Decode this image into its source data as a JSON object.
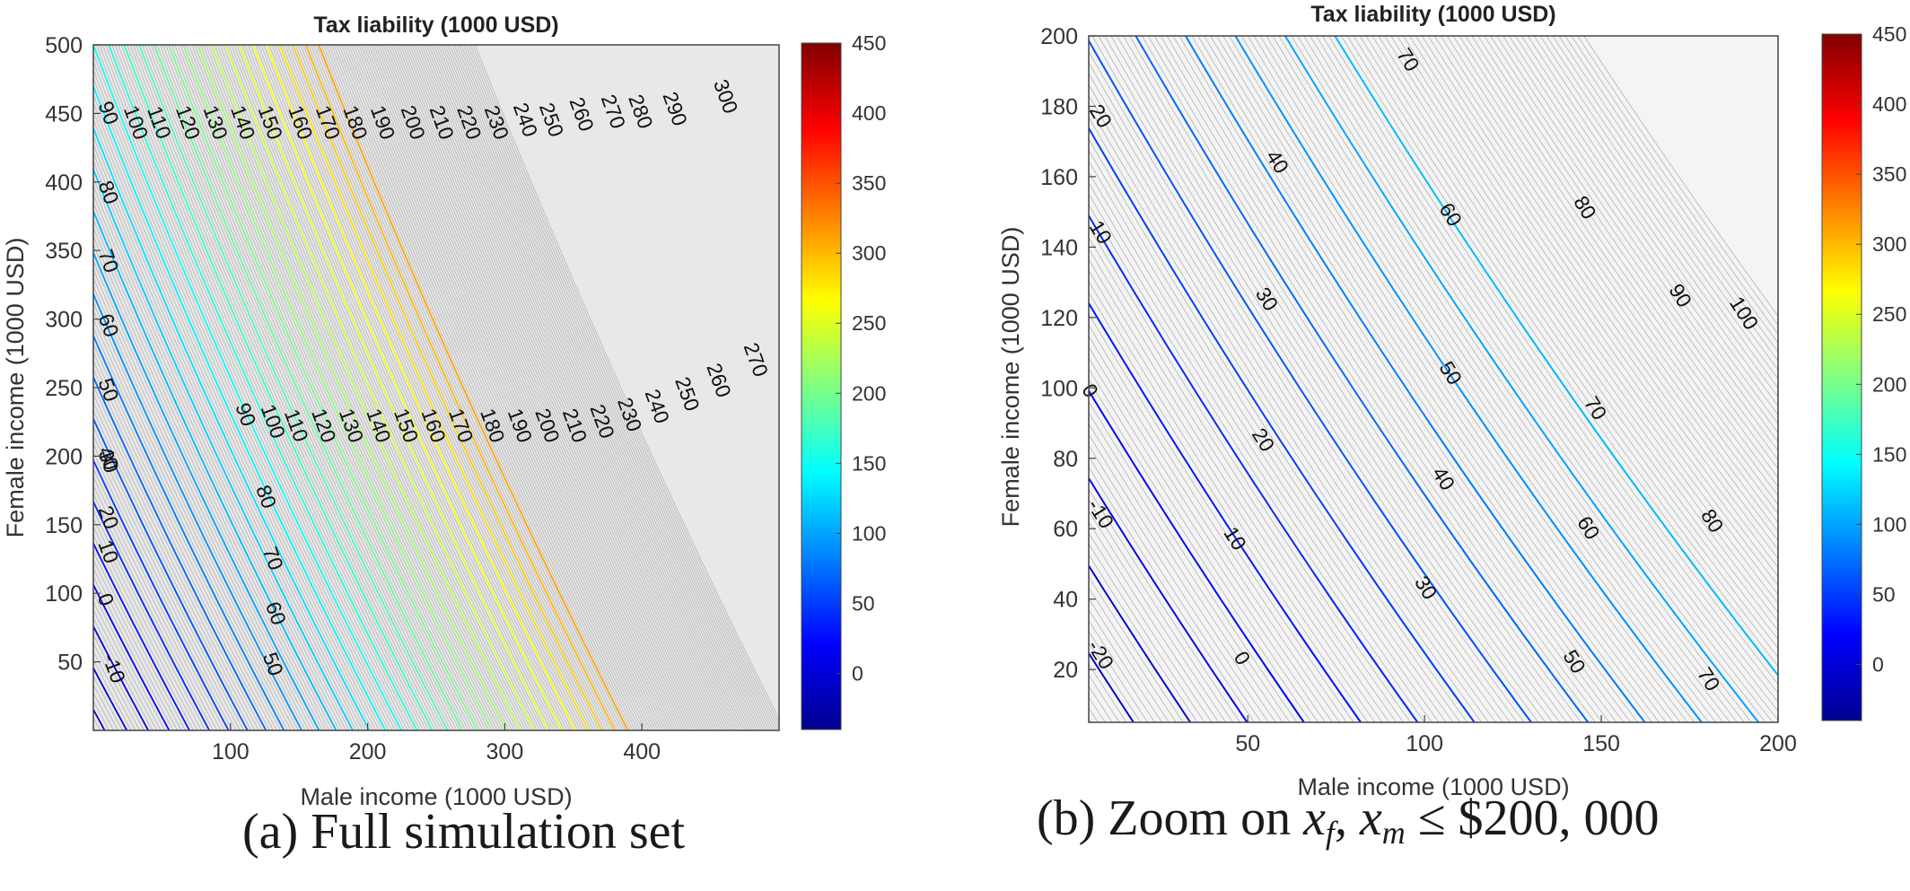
{
  "colormap_stops": [
    "#00008f",
    "#0000ff",
    "#0080ff",
    "#00ffff",
    "#80ff80",
    "#ffff00",
    "#ff8000",
    "#ff0000",
    "#800000"
  ],
  "minor_line_color": "#b4b4b4",
  "plot_background": "#e6e6e6",
  "chart_data": [
    {
      "type": "contour",
      "title": "Tax liability (1000 USD)",
      "xlabel": "Male income (1000 USD)",
      "ylabel": "Female income (1000 USD)",
      "xlim": [
        0,
        500
      ],
      "ylim": [
        0,
        500
      ],
      "xticks": [
        100,
        200,
        300,
        400
      ],
      "yticks": [
        50,
        100,
        150,
        200,
        250,
        300,
        350,
        400,
        450,
        500
      ],
      "colorbar": {
        "range": [
          -40,
          450
        ],
        "ticks": [
          0,
          50,
          100,
          150,
          200,
          250,
          300,
          350,
          400,
          450
        ]
      },
      "contour_labels": [
        {
          "x": 10,
          "y": 450,
          "value": "90"
        },
        {
          "x": 30,
          "y": 443,
          "value": "100"
        },
        {
          "x": 47,
          "y": 443,
          "value": "110"
        },
        {
          "x": 68,
          "y": 443,
          "value": "120"
        },
        {
          "x": 88,
          "y": 443,
          "value": "130"
        },
        {
          "x": 108,
          "y": 443,
          "value": "140"
        },
        {
          "x": 128,
          "y": 443,
          "value": "150"
        },
        {
          "x": 150,
          "y": 443,
          "value": "160"
        },
        {
          "x": 170,
          "y": 443,
          "value": "170"
        },
        {
          "x": 190,
          "y": 443,
          "value": "180"
        },
        {
          "x": 210,
          "y": 443,
          "value": "190"
        },
        {
          "x": 232,
          "y": 443,
          "value": "200"
        },
        {
          "x": 253,
          "y": 443,
          "value": "210"
        },
        {
          "x": 273,
          "y": 443,
          "value": "220"
        },
        {
          "x": 293,
          "y": 443,
          "value": "230"
        },
        {
          "x": 314,
          "y": 445,
          "value": "240"
        },
        {
          "x": 333,
          "y": 445,
          "value": "250"
        },
        {
          "x": 355,
          "y": 449,
          "value": "260"
        },
        {
          "x": 378,
          "y": 451,
          "value": "270"
        },
        {
          "x": 398,
          "y": 451,
          "value": "280"
        },
        {
          "x": 423,
          "y": 453,
          "value": "290"
        },
        {
          "x": 460,
          "y": 462,
          "value": "300"
        },
        {
          "x": 10,
          "y": 392,
          "value": "80"
        },
        {
          "x": 10,
          "y": 342,
          "value": "70"
        },
        {
          "x": 10,
          "y": 295,
          "value": "60"
        },
        {
          "x": 10,
          "y": 248,
          "value": "50"
        },
        {
          "x": 10,
          "y": 198,
          "value": "40"
        },
        {
          "x": 10,
          "y": 196,
          "value": "30"
        },
        {
          "x": 10,
          "y": 155,
          "value": "20"
        },
        {
          "x": 10,
          "y": 130,
          "value": "10"
        },
        {
          "x": 8,
          "y": 95,
          "value": "0"
        },
        {
          "x": 14,
          "y": 45,
          "value": "-10"
        },
        {
          "x": 110,
          "y": 230,
          "value": "90"
        },
        {
          "x": 130,
          "y": 225,
          "value": "100"
        },
        {
          "x": 147,
          "y": 222,
          "value": "110"
        },
        {
          "x": 167,
          "y": 222,
          "value": "120"
        },
        {
          "x": 187,
          "y": 222,
          "value": "130"
        },
        {
          "x": 207,
          "y": 222,
          "value": "140"
        },
        {
          "x": 227,
          "y": 222,
          "value": "150"
        },
        {
          "x": 247,
          "y": 222,
          "value": "160"
        },
        {
          "x": 267,
          "y": 222,
          "value": "170"
        },
        {
          "x": 290,
          "y": 222,
          "value": "180"
        },
        {
          "x": 310,
          "y": 222,
          "value": "190"
        },
        {
          "x": 330,
          "y": 222,
          "value": "200"
        },
        {
          "x": 350,
          "y": 222,
          "value": "210"
        },
        {
          "x": 370,
          "y": 225,
          "value": "220"
        },
        {
          "x": 390,
          "y": 230,
          "value": "230"
        },
        {
          "x": 410,
          "y": 236,
          "value": "240"
        },
        {
          "x": 432,
          "y": 245,
          "value": "250"
        },
        {
          "x": 455,
          "y": 255,
          "value": "260"
        },
        {
          "x": 482,
          "y": 270,
          "value": "270"
        },
        {
          "x": 125,
          "y": 170,
          "value": "80"
        },
        {
          "x": 130,
          "y": 125,
          "value": "70"
        },
        {
          "x": 132,
          "y": 85,
          "value": "60"
        },
        {
          "x": 130,
          "y": 48,
          "value": "50"
        }
      ]
    },
    {
      "type": "contour",
      "title": "Tax liability (1000 USD)",
      "xlabel": "Male income (1000 USD)",
      "ylabel": "Female income (1000 USD)",
      "xlim": [
        5,
        200
      ],
      "ylim": [
        5,
        200
      ],
      "xticks": [
        50,
        100,
        150,
        200
      ],
      "yticks": [
        20,
        40,
        60,
        80,
        100,
        120,
        140,
        160,
        180,
        200
      ],
      "colorbar": {
        "range": [
          -40,
          450
        ],
        "ticks": [
          0,
          50,
          100,
          150,
          200,
          250,
          300,
          350,
          400,
          450
        ]
      },
      "contour_labels": [
        {
          "x": 95,
          "y": 193,
          "value": "70"
        },
        {
          "x": 8,
          "y": 177,
          "value": "20"
        },
        {
          "x": 58,
          "y": 164,
          "value": "40"
        },
        {
          "x": 145,
          "y": 151,
          "value": "80"
        },
        {
          "x": 107,
          "y": 149,
          "value": "60"
        },
        {
          "x": 8,
          "y": 144,
          "value": "10"
        },
        {
          "x": 55,
          "y": 125,
          "value": "30"
        },
        {
          "x": 172,
          "y": 126,
          "value": "90"
        },
        {
          "x": 190,
          "y": 121,
          "value": "100"
        },
        {
          "x": 107,
          "y": 104,
          "value": "50"
        },
        {
          "x": 5,
          "y": 99,
          "value": "0"
        },
        {
          "x": 148,
          "y": 94,
          "value": "70"
        },
        {
          "x": 54,
          "y": 85,
          "value": "20"
        },
        {
          "x": 105,
          "y": 74,
          "value": "40"
        },
        {
          "x": 8,
          "y": 64,
          "value": "-10"
        },
        {
          "x": 46,
          "y": 57,
          "value": "10"
        },
        {
          "x": 146,
          "y": 60,
          "value": "60"
        },
        {
          "x": 181,
          "y": 62,
          "value": "80"
        },
        {
          "x": 100,
          "y": 43,
          "value": "30"
        },
        {
          "x": 8,
          "y": 24,
          "value": "-20"
        },
        {
          "x": 48,
          "y": 23,
          "value": "0"
        },
        {
          "x": 142,
          "y": 22,
          "value": "50"
        },
        {
          "x": 180,
          "y": 17,
          "value": "70"
        }
      ]
    }
  ],
  "captions": {
    "a": "(a) Full simulation set",
    "b_prefix": "(b) Zoom on ",
    "b_var1": "x",
    "b_sub1": "f",
    "b_comma": ", ",
    "b_var2": "x",
    "b_sub2": "m",
    "b_suffix": " ≤ $200, 000"
  }
}
